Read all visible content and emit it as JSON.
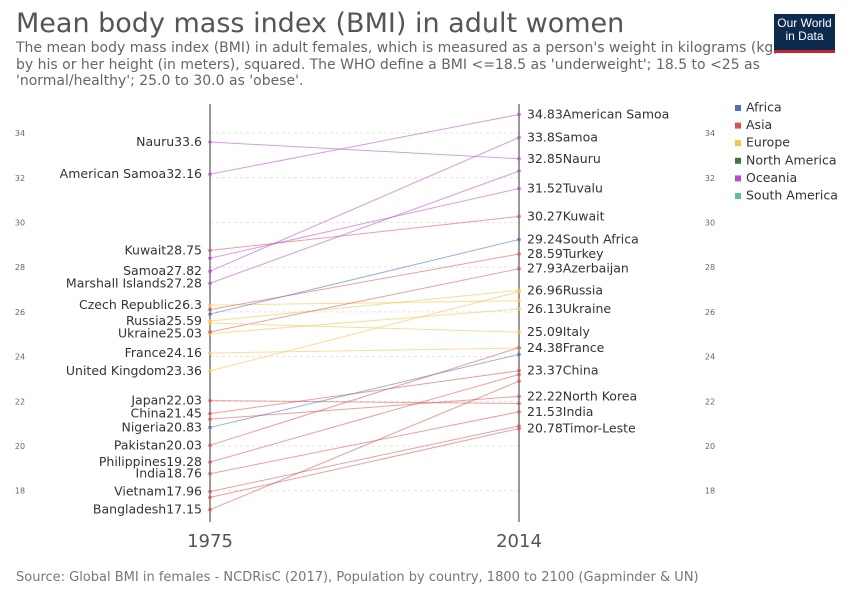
{
  "title": "Mean body mass index (BMI) in adult women",
  "subtitle": "The mean body mass index (BMI) in adult females, which is measured as a person's weight in kilograms (kg) divided by his or her height (in meters), squared. The WHO define a BMI <=18.5 as 'underweight'; 18.5 to <25 as 'normal/healthy'; 25.0 to 30.0 as 'obese'.",
  "logo": {
    "line1": "Our World",
    "line2": "in Data"
  },
  "source": "Source: Global BMI in females - NCDRisC (2017), Population by country, 1800 to 2100 (Gapminder & UN)",
  "colors": {
    "Africa": "#4c6fbf",
    "Asia": "#d9534f",
    "Europe": "#f6c342",
    "North America": "#3a7d3a",
    "Oceania": "#b44fc8",
    "South America": "#5fc48b"
  },
  "chart_data": {
    "type": "line",
    "title": "Mean body mass index (BMI) in adult women",
    "x": [
      "1975",
      "2014"
    ],
    "ylim": [
      16.6,
      35.3
    ],
    "yticks": [
      18,
      20,
      22,
      24,
      26,
      28,
      30,
      32,
      34
    ],
    "legend": [
      "Africa",
      "Asia",
      "Europe",
      "North America",
      "Oceania",
      "South America"
    ],
    "legend_position": "right",
    "labels_1975": [
      {
        "name": "Nauru",
        "value": 33.6
      },
      {
        "name": "American Samoa",
        "value": 32.16
      },
      {
        "name": "Kuwait",
        "value": 28.75
      },
      {
        "name": "Samoa",
        "value": 27.82
      },
      {
        "name": "Marshall Islands",
        "value": 27.28
      },
      {
        "name": "Czech Republic",
        "value": 26.3
      },
      {
        "name": "Russia",
        "value": 25.59
      },
      {
        "name": "Ukraine",
        "value": 25.03
      },
      {
        "name": "France",
        "value": 24.16
      },
      {
        "name": "United Kingdom",
        "value": 23.36
      },
      {
        "name": "Japan",
        "value": 22.03
      },
      {
        "name": "China",
        "value": 21.45
      },
      {
        "name": "Nigeria",
        "value": 20.83
      },
      {
        "name": "Pakistan",
        "value": 20.03
      },
      {
        "name": "Philippines",
        "value": 19.28
      },
      {
        "name": "India",
        "value": 18.76
      },
      {
        "name": "Vietnam",
        "value": 17.96
      },
      {
        "name": "Bangladesh",
        "value": 17.15
      }
    ],
    "labels_2014": [
      {
        "name": "American Samoa",
        "value": 34.83
      },
      {
        "name": "Samoa",
        "value": 33.8
      },
      {
        "name": "Nauru",
        "value": 32.85
      },
      {
        "name": "Tuvalu",
        "value": 31.52
      },
      {
        "name": "Kuwait",
        "value": 30.27
      },
      {
        "name": "South Africa",
        "value": 29.24
      },
      {
        "name": "Turkey",
        "value": 28.59
      },
      {
        "name": "Azerbaijan",
        "value": 27.93
      },
      {
        "name": "Russia",
        "value": 26.96
      },
      {
        "name": "Ukraine",
        "value": 26.13
      },
      {
        "name": "Italy",
        "value": 25.09
      },
      {
        "name": "France",
        "value": 24.38
      },
      {
        "name": "China",
        "value": 23.37
      },
      {
        "name": "North Korea",
        "value": 22.22
      },
      {
        "name": "India",
        "value": 21.53
      },
      {
        "name": "Timor-Leste",
        "value": 20.78
      }
    ],
    "series": [
      {
        "name": "Nauru",
        "region": "Oceania",
        "values": [
          33.6,
          32.85
        ]
      },
      {
        "name": "American Samoa",
        "region": "Oceania",
        "values": [
          32.16,
          34.83
        ]
      },
      {
        "name": "Kuwait",
        "region": "Asia",
        "values": [
          28.75,
          30.27
        ]
      },
      {
        "name": "Samoa",
        "region": "Oceania",
        "values": [
          27.82,
          33.8
        ]
      },
      {
        "name": "Marshall Islands",
        "region": "Oceania",
        "values": [
          27.28,
          32.3
        ]
      },
      {
        "name": "Czech Republic",
        "region": "Europe",
        "values": [
          26.3,
          26.5
        ]
      },
      {
        "name": "Russia",
        "region": "Europe",
        "values": [
          25.59,
          26.96
        ]
      },
      {
        "name": "Ukraine",
        "region": "Europe",
        "values": [
          25.03,
          26.13
        ]
      },
      {
        "name": "France",
        "region": "Europe",
        "values": [
          24.16,
          24.38
        ]
      },
      {
        "name": "United Kingdom",
        "region": "Europe",
        "values": [
          23.36,
          26.9
        ]
      },
      {
        "name": "Japan",
        "region": "Asia",
        "values": [
          22.03,
          21.9
        ]
      },
      {
        "name": "China",
        "region": "Asia",
        "values": [
          21.45,
          23.37
        ]
      },
      {
        "name": "Nigeria",
        "region": "Africa",
        "values": [
          20.83,
          24.1
        ]
      },
      {
        "name": "Pakistan",
        "region": "Asia",
        "values": [
          20.03,
          24.4
        ]
      },
      {
        "name": "Philippines",
        "region": "Asia",
        "values": [
          19.28,
          23.2
        ]
      },
      {
        "name": "India",
        "region": "Asia",
        "values": [
          18.76,
          21.53
        ]
      },
      {
        "name": "Vietnam",
        "region": "Asia",
        "values": [
          17.96,
          20.9
        ]
      },
      {
        "name": "Bangladesh",
        "region": "Asia",
        "values": [
          17.15,
          22.9
        ]
      },
      {
        "name": "Tuvalu",
        "region": "Oceania",
        "values": [
          28.4,
          31.52
        ]
      },
      {
        "name": "South Africa",
        "region": "Africa",
        "values": [
          25.9,
          29.24
        ]
      },
      {
        "name": "Turkey",
        "region": "Asia",
        "values": [
          26.1,
          28.59
        ]
      },
      {
        "name": "Azerbaijan",
        "region": "Asia",
        "values": [
          25.1,
          27.93
        ]
      },
      {
        "name": "Italy",
        "region": "Europe",
        "values": [
          25.5,
          25.09
        ]
      },
      {
        "name": "North Korea",
        "region": "Asia",
        "values": [
          21.2,
          22.22
        ]
      },
      {
        "name": "Timor-Leste",
        "region": "Asia",
        "values": [
          17.7,
          20.78
        ]
      }
    ]
  }
}
